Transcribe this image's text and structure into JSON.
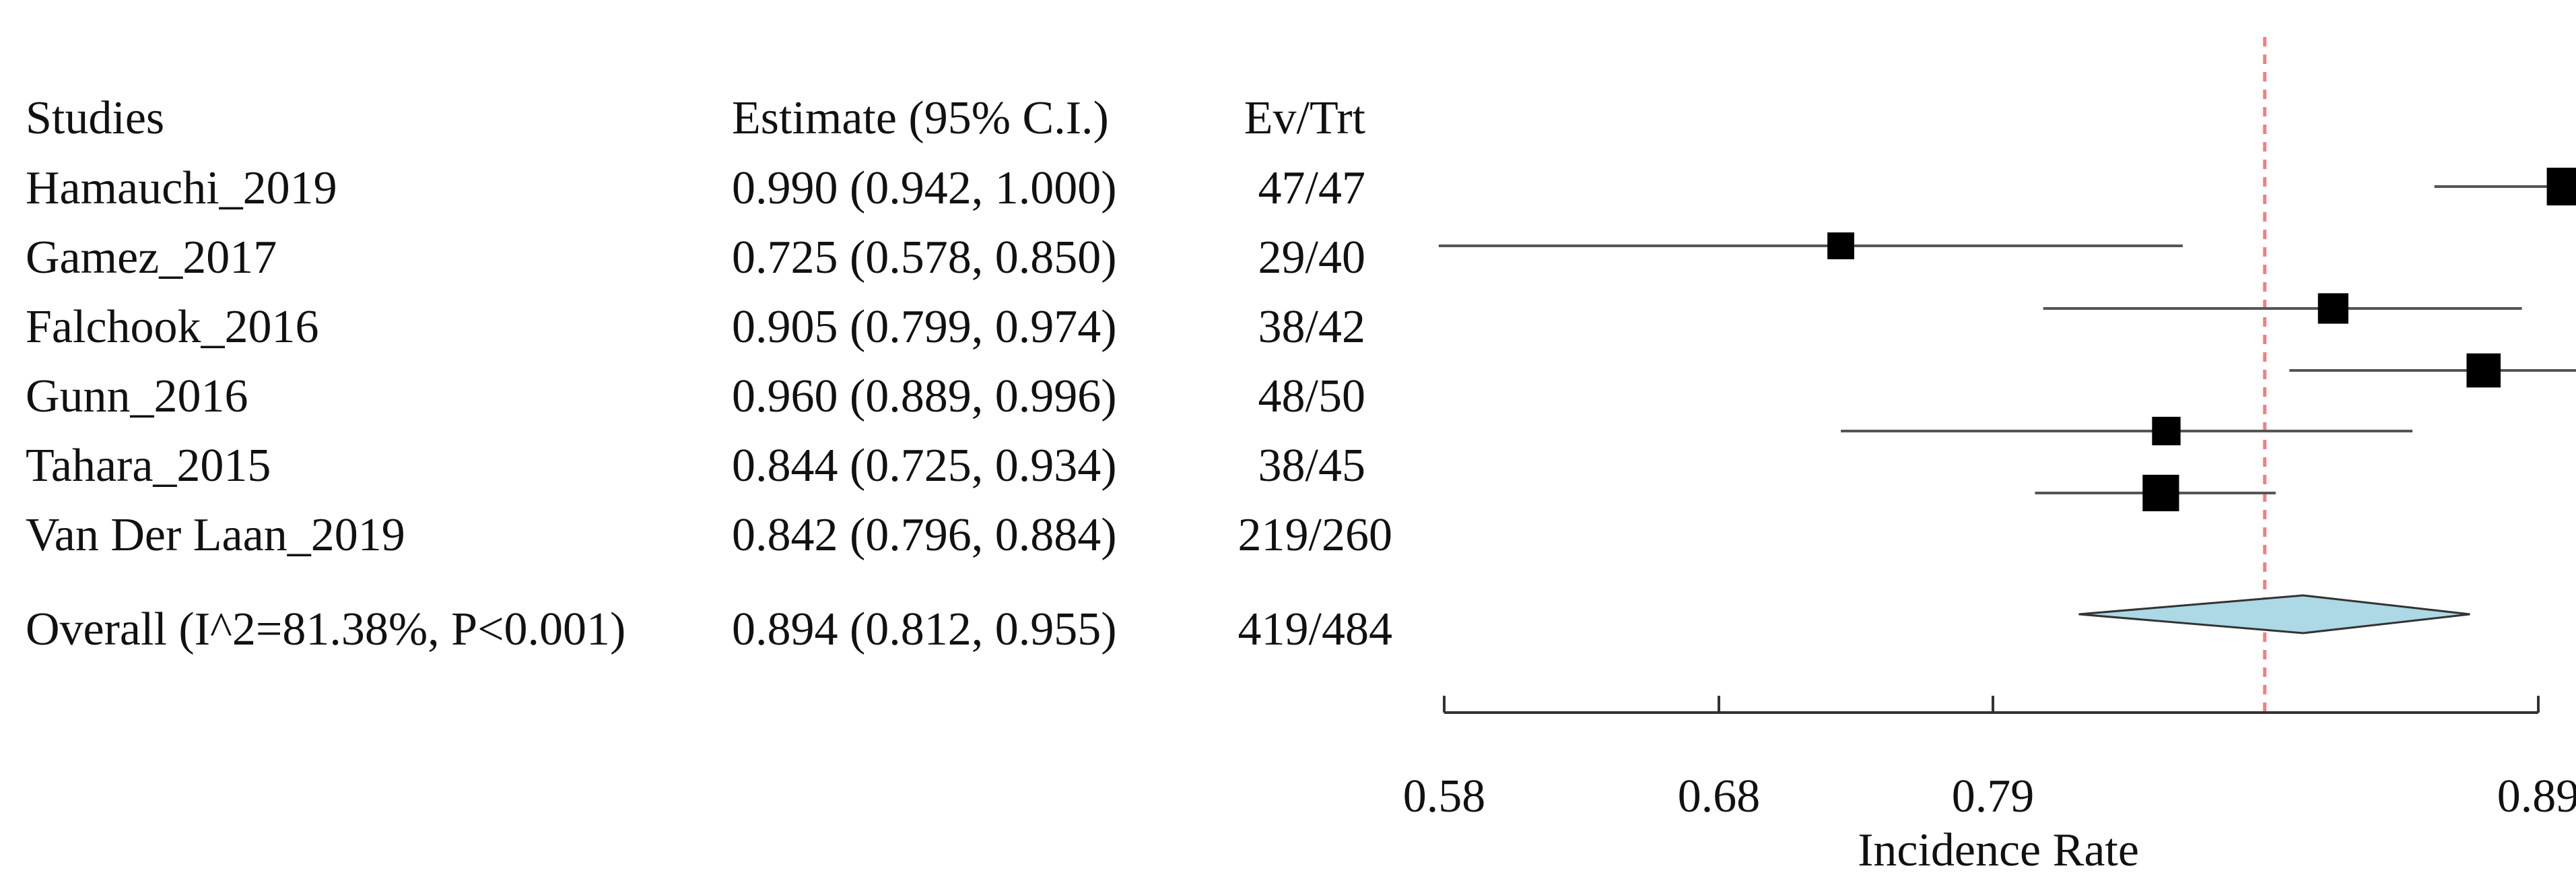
{
  "chart_data": {
    "type": "forest",
    "headers": {
      "study": "Studies",
      "estimate": "Estimate (95% C.I.)",
      "events": "Ev/Trt"
    },
    "studies": [
      {
        "name": "Hamauchi_2019",
        "estimate": 0.99,
        "ci_low": 0.942,
        "ci_high": 1.0,
        "estimate_text": "0.990 (0.942, 1.000)",
        "events": "47/47",
        "weight": 1.0
      },
      {
        "name": "Gamez_2017",
        "estimate": 0.725,
        "ci_low": 0.578,
        "ci_high": 0.85,
        "estimate_text": "0.725 (0.578, 0.850)",
        "events": "29/40",
        "weight": 0.55
      },
      {
        "name": "Falchook_2016",
        "estimate": 0.905,
        "ci_low": 0.799,
        "ci_high": 0.974,
        "estimate_text": "0.905 (0.799, 0.974)",
        "events": "38/42",
        "weight": 0.7
      },
      {
        "name": "Gunn_2016",
        "estimate": 0.96,
        "ci_low": 0.889,
        "ci_high": 0.996,
        "estimate_text": "0.960 (0.889, 0.996)",
        "events": "48/50",
        "weight": 0.85
      },
      {
        "name": "Tahara_2015",
        "estimate": 0.844,
        "ci_low": 0.725,
        "ci_high": 0.934,
        "estimate_text": "0.844 (0.725, 0.934)",
        "events": "38/45",
        "weight": 0.62
      },
      {
        "name": "Van Der Laan_2019",
        "estimate": 0.842,
        "ci_low": 0.796,
        "ci_high": 0.884,
        "estimate_text": "0.842 (0.796, 0.884)",
        "events": "219/260",
        "weight": 0.95
      }
    ],
    "overall": {
      "name": "Overall (I^2=81.38%, P<0.001)",
      "estimate": 0.894,
      "ci_low": 0.812,
      "ci_high": 0.955,
      "estimate_text": "0.894 (0.812, 0.955)",
      "events": "419/484"
    },
    "xaxis": {
      "label": "Incidence Rate",
      "ticks": [
        {
          "value": 0.58,
          "label": "0.58"
        },
        {
          "value": 0.68,
          "label": "0.68"
        },
        {
          "value": 0.79,
          "label": "0.79"
        },
        {
          "value": 0.89,
          "label": "0.89"
        }
      ],
      "range": [
        0.58,
        0.98
      ]
    },
    "reference_line": 0.88,
    "colors": {
      "marker": "#000000",
      "ci_line": "#555555",
      "diamond_fill": "#add8e6",
      "diamond_stroke": "#333333",
      "reference": "#f08080",
      "axis": "#333333"
    }
  }
}
